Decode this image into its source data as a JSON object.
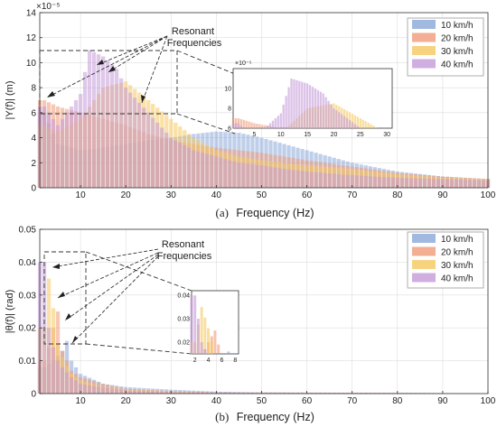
{
  "colors": {
    "s10": "#8aa8d8",
    "s20": "#f09a78",
    "s30": "#f5c860",
    "s40": "#c49ad8",
    "grid": "#dedede",
    "axis": "#333333"
  },
  "chart_data": [
    {
      "id": "a",
      "type": "bar",
      "caption_letter": "(a)",
      "xlabel": "Frequency (Hz)",
      "ylabel": "|Y(f)| (m)",
      "exponent": "×10⁻⁵",
      "xlim": [
        1,
        100
      ],
      "ylim": [
        0,
        14
      ],
      "xticks": [
        10,
        20,
        30,
        40,
        50,
        60,
        70,
        80,
        90,
        100
      ],
      "yticks": [
        0,
        2,
        4,
        6,
        8,
        10,
        12,
        14
      ],
      "grid": true,
      "legend_placement": "top-right",
      "annotation": "Resonant\nFrequencies",
      "series": [
        {
          "name": "10 km/h",
          "color_key": "s10",
          "x": [
            2,
            5,
            10,
            15,
            20,
            25,
            30,
            35,
            40,
            45,
            50,
            55,
            60,
            70,
            80,
            90,
            100
          ],
          "values": [
            6.0,
            3.5,
            3.0,
            3.2,
            3.5,
            3.8,
            4.0,
            4.3,
            4.5,
            4.4,
            4.0,
            3.5,
            3.0,
            2.0,
            1.3,
            0.9,
            0.7
          ]
        },
        {
          "name": "20 km/h",
          "color_key": "s20",
          "x": [
            2,
            5,
            10,
            15,
            20,
            25,
            30,
            35,
            40,
            45,
            50,
            55,
            60,
            70,
            80,
            90,
            100
          ],
          "values": [
            7.0,
            6.5,
            6.0,
            5.5,
            5.0,
            4.3,
            3.8,
            3.5,
            3.2,
            3.0,
            2.8,
            2.5,
            2.2,
            1.7,
            1.2,
            0.9,
            0.7
          ]
        },
        {
          "name": "30 km/h",
          "color_key": "s30",
          "x": [
            2,
            5,
            10,
            15,
            20,
            25,
            30,
            35,
            40,
            45,
            50,
            55,
            60,
            70,
            80,
            90,
            100
          ],
          "values": [
            5.0,
            4.5,
            5.5,
            8.0,
            8.5,
            7.0,
            5.5,
            4.0,
            3.0,
            2.5,
            2.2,
            2.0,
            1.8,
            1.5,
            1.1,
            0.8,
            0.7
          ]
        },
        {
          "name": "40 km/h",
          "color_key": "s40",
          "x": [
            2,
            5,
            10,
            12,
            15,
            18,
            20,
            25,
            30,
            35,
            40,
            45,
            50,
            55,
            60,
            70,
            80,
            90,
            100
          ],
          "values": [
            6.5,
            5.0,
            7.5,
            11.0,
            10.5,
            9.5,
            8.0,
            6.0,
            4.0,
            3.0,
            2.5,
            2.0,
            1.8,
            1.5,
            1.3,
            1.0,
            0.8,
            0.7,
            0.6
          ]
        }
      ],
      "inset": {
        "exponent": "×10⁻⁵",
        "xlim": [
          1,
          31
        ],
        "ylim": [
          6,
          12
        ],
        "xticks": [
          5,
          10,
          15,
          20,
          25,
          30
        ],
        "yticks": [
          6,
          8,
          10
        ]
      }
    },
    {
      "id": "b",
      "type": "bar",
      "caption_letter": "(b)",
      "xlabel": "Frequency (Hz)",
      "ylabel": "|θ(f)| (rad)",
      "xlim": [
        1,
        100
      ],
      "ylim": [
        0,
        0.05
      ],
      "xticks": [
        10,
        20,
        30,
        40,
        50,
        60,
        70,
        80,
        90,
        100
      ],
      "yticks": [
        0,
        0.01,
        0.02,
        0.03,
        0.04,
        0.05
      ],
      "grid": true,
      "legend_placement": "top-right",
      "annotation": "Resonant\nFrequencies",
      "series": [
        {
          "name": "10 km/h",
          "color_key": "s10",
          "x": [
            2,
            4,
            6,
            7,
            8,
            10,
            15,
            20,
            30,
            40,
            50,
            100
          ],
          "values": [
            0.008,
            0.01,
            0.013,
            0.016,
            0.01,
            0.006,
            0.003,
            0.002,
            0.0012,
            0.0006,
            0.0003,
            0.0001
          ]
        },
        {
          "name": "20 km/h",
          "color_key": "s20",
          "x": [
            2,
            3,
            4,
            5,
            6,
            8,
            10,
            15,
            20,
            30,
            40,
            100
          ],
          "values": [
            0.01,
            0.014,
            0.02,
            0.025,
            0.013,
            0.007,
            0.005,
            0.003,
            0.0015,
            0.0008,
            0.0004,
            0.0001
          ]
        },
        {
          "name": "30 km/h",
          "color_key": "s30",
          "x": [
            2,
            3,
            4,
            5,
            6,
            8,
            10,
            15,
            20,
            30,
            40,
            100
          ],
          "values": [
            0.02,
            0.035,
            0.026,
            0.015,
            0.011,
            0.006,
            0.004,
            0.002,
            0.0012,
            0.0007,
            0.0003,
            0.0001
          ]
        },
        {
          "name": "40 km/h",
          "color_key": "s40",
          "x": [
            2,
            2.5,
            3,
            4,
            5,
            6,
            8,
            10,
            15,
            20,
            30,
            100
          ],
          "values": [
            0.04,
            0.03,
            0.02,
            0.014,
            0.01,
            0.008,
            0.005,
            0.003,
            0.0018,
            0.001,
            0.0005,
            0.0001
          ]
        }
      ],
      "inset": {
        "xlim": [
          1.5,
          8.5
        ],
        "ylim": [
          0.015,
          0.042
        ],
        "xticks": [
          2,
          4,
          6,
          8
        ],
        "yticks": [
          0.02,
          0.03,
          0.04
        ]
      }
    }
  ]
}
